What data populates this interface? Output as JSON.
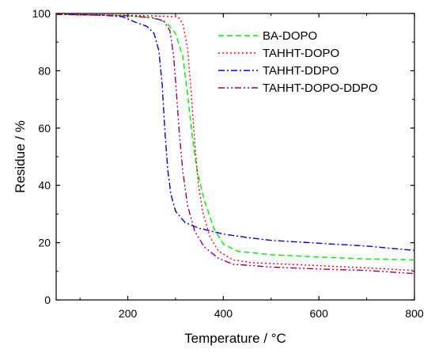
{
  "chart_data": {
    "type": "line",
    "xlabel": "Temperature / °C",
    "ylabel": "Residue / %",
    "xlim": [
      50,
      800
    ],
    "ylim": [
      0,
      100
    ],
    "x_ticks": [
      200,
      400,
      600,
      800
    ],
    "y_ticks": [
      0,
      20,
      40,
      60,
      80,
      100
    ],
    "grid": false,
    "legend_position": "top-right",
    "series": [
      {
        "name": "BA-DOPO",
        "color": "#00ee00",
        "style": "dash",
        "points": [
          [
            50,
            99.7
          ],
          [
            150,
            99.5
          ],
          [
            200,
            99.2
          ],
          [
            250,
            98.5
          ],
          [
            280,
            97
          ],
          [
            300,
            93
          ],
          [
            315,
            85
          ],
          [
            325,
            72
          ],
          [
            335,
            57
          ],
          [
            345,
            45
          ],
          [
            360,
            35
          ],
          [
            380,
            25
          ],
          [
            400,
            19.5
          ],
          [
            430,
            17
          ],
          [
            500,
            15.8
          ],
          [
            600,
            15
          ],
          [
            700,
            14.3
          ],
          [
            800,
            14
          ]
        ]
      },
      {
        "name": "TAHHT-DOPO",
        "color": "#ff0000",
        "style": "dot",
        "points": [
          [
            50,
            99.7
          ],
          [
            200,
            99.4
          ],
          [
            280,
            99
          ],
          [
            305,
            98.8
          ],
          [
            315,
            96.5
          ],
          [
            325,
            88
          ],
          [
            333,
            72
          ],
          [
            340,
            55
          ],
          [
            348,
            40
          ],
          [
            358,
            30
          ],
          [
            372,
            22
          ],
          [
            390,
            17
          ],
          [
            420,
            14
          ],
          [
            460,
            13
          ],
          [
            600,
            12
          ],
          [
            700,
            11.2
          ],
          [
            800,
            10.3
          ]
        ]
      },
      {
        "name": "TAHHT-DDPO",
        "color": "#0000dd",
        "style": "dashdot",
        "points": [
          [
            50,
            99.7
          ],
          [
            150,
            99.4
          ],
          [
            190,
            98.8
          ],
          [
            215,
            97
          ],
          [
            240,
            95.5
          ],
          [
            255,
            93
          ],
          [
            265,
            87
          ],
          [
            272,
            75
          ],
          [
            278,
            58
          ],
          [
            284,
            45
          ],
          [
            290,
            37
          ],
          [
            300,
            31
          ],
          [
            320,
            27
          ],
          [
            350,
            25
          ],
          [
            400,
            23
          ],
          [
            450,
            21.8
          ],
          [
            500,
            20.8
          ],
          [
            600,
            19.8
          ],
          [
            700,
            18.8
          ],
          [
            800,
            17.3
          ]
        ]
      },
      {
        "name": "TAHHT-DOPO-DDPO",
        "color": "#990066",
        "style": "dashdotdot",
        "points": [
          [
            50,
            99.7
          ],
          [
            200,
            99.2
          ],
          [
            250,
            98.5
          ],
          [
            275,
            97.5
          ],
          [
            288,
            94
          ],
          [
            296,
            85
          ],
          [
            302,
            72
          ],
          [
            308,
            58
          ],
          [
            315,
            45
          ],
          [
            325,
            33
          ],
          [
            340,
            24
          ],
          [
            360,
            18.5
          ],
          [
            390,
            14.5
          ],
          [
            420,
            12.5
          ],
          [
            500,
            11.5
          ],
          [
            600,
            10.8
          ],
          [
            700,
            10.3
          ],
          [
            800,
            9.2
          ]
        ]
      }
    ]
  }
}
